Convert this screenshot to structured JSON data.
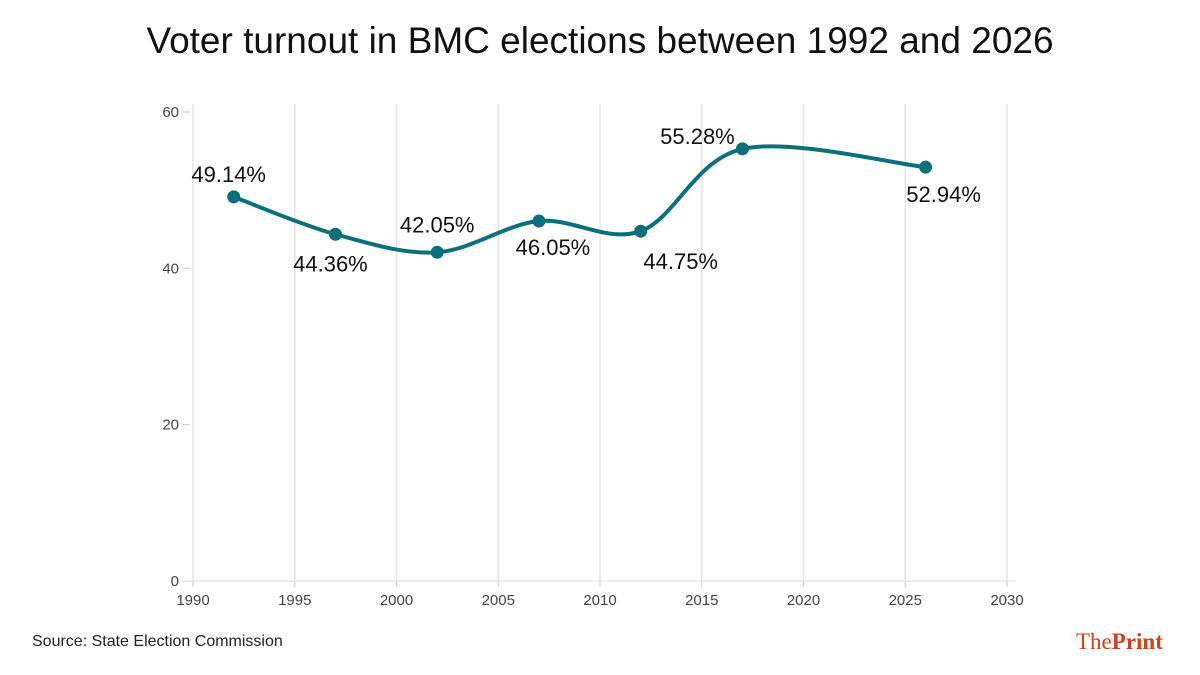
{
  "chart_data": {
    "type": "line",
    "title": "Voter turnout in BMC elections between 1992 and 2026",
    "x": [
      1992,
      1997,
      2002,
      2007,
      2012,
      2017,
      2026
    ],
    "series": [
      {
        "values": [
          49.14,
          44.36,
          42.05,
          46.05,
          44.75,
          55.28,
          52.94
        ]
      }
    ],
    "data_labels": [
      "49.14%",
      "44.36%",
      "42.05%",
      "46.05%",
      "44.75%",
      "55.28%",
      "52.94%"
    ],
    "xlim": [
      1990,
      2030
    ],
    "ylim": [
      0,
      60
    ],
    "x_ticks": [
      1990,
      1995,
      2000,
      2005,
      2010,
      2015,
      2020,
      2025,
      2030
    ],
    "y_ticks": [
      0,
      20,
      40,
      60
    ],
    "xlabel": "",
    "ylabel": "",
    "grid": "vertical",
    "line_color": "#0b6f7c"
  },
  "source": "Source: State Election Commission",
  "logo": {
    "part1": "The",
    "part2": "Print",
    "color": "#d2401e"
  }
}
